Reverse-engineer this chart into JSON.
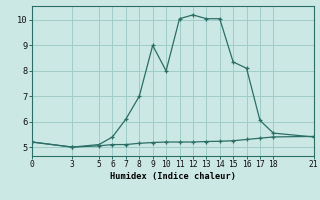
{
  "xlabel": "Humidex (Indice chaleur)",
  "bg_color": "#cce8e4",
  "grid_color": "#a0cdc8",
  "line_color": "#2a6e65",
  "marker": "+",
  "series2_x": [
    0,
    3,
    5,
    6,
    7,
    8,
    9,
    10,
    11,
    12,
    13,
    14,
    15,
    16,
    17,
    18,
    21
  ],
  "series2_y": [
    5.2,
    5.0,
    5.1,
    5.4,
    6.1,
    7.0,
    9.0,
    8.0,
    10.05,
    10.2,
    10.05,
    10.05,
    8.35,
    8.1,
    6.05,
    5.55,
    5.4
  ],
  "series1_x": [
    0,
    3,
    5,
    6,
    7,
    8,
    9,
    10,
    11,
    12,
    13,
    14,
    15,
    16,
    17,
    18,
    21
  ],
  "series1_y": [
    5.2,
    5.0,
    5.05,
    5.1,
    5.1,
    5.15,
    5.18,
    5.2,
    5.2,
    5.2,
    5.22,
    5.23,
    5.25,
    5.3,
    5.35,
    5.4,
    5.42
  ],
  "xticks": [
    0,
    3,
    5,
    6,
    7,
    8,
    9,
    10,
    11,
    12,
    13,
    14,
    15,
    16,
    17,
    18,
    21
  ],
  "yticks": [
    5,
    6,
    7,
    8,
    9,
    10
  ],
  "xlim": [
    0,
    21
  ],
  "ylim": [
    4.65,
    10.55
  ],
  "tick_fontsize": 5.8,
  "xlabel_fontsize": 6.2
}
